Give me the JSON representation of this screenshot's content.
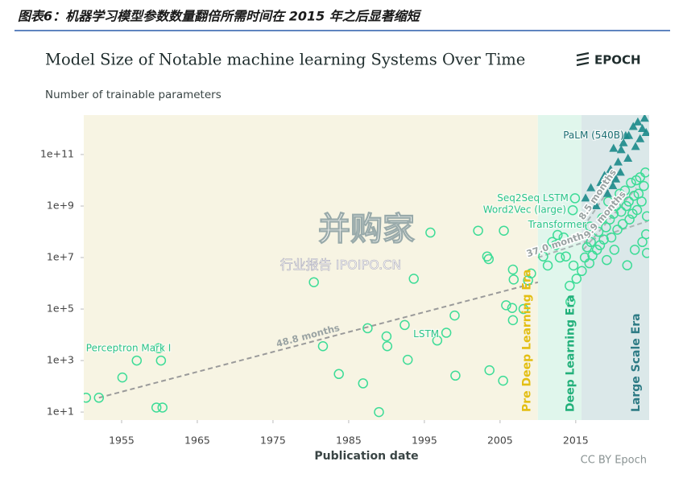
{
  "header": {
    "caption": "图表6：机器学习模型参数数量翻倍所需时间在 2015 年之后显著缩短"
  },
  "watermark": {
    "main": "并购家",
    "sub": "行业报告 IPOIPO.CN"
  },
  "chart_data": {
    "type": "scatter",
    "title": "Model Size of Notable machine learning Systems Over Time",
    "logo": "EPOCH",
    "y_label": "Number of trainable parameters",
    "x_label": "Publication date",
    "credit": "CC BY Epoch",
    "log_y": true,
    "xlim": [
      1950,
      2024.7
    ],
    "xticks": [
      1955,
      1965,
      1975,
      1985,
      1995,
      2005,
      2015
    ],
    "ylim": [
      4.9,
      3400000000000
    ],
    "yticks": [
      {
        "value": 10,
        "label": "1e+1"
      },
      {
        "value": 1000,
        "label": "1e+3"
      },
      {
        "value": 100000,
        "label": "1e+5"
      },
      {
        "value": 10000000,
        "label": "1e+7"
      },
      {
        "value": 1000000000,
        "label": "1e+9"
      },
      {
        "value": 100000000000,
        "label": "1e+11"
      }
    ],
    "eras": [
      {
        "name": "Pre Deep Learning Era",
        "start": 1950,
        "end": 2010,
        "color": "#f7f4e3",
        "label_color": "#e3be12"
      },
      {
        "name": "Deep Learning Era",
        "start": 2010,
        "end": 2015.75,
        "color": "#e0f6ec",
        "label_color": "#22b07a"
      },
      {
        "name": "Large Scale Era",
        "start": 2015.75,
        "end": 2024.7,
        "color": "#dbe8e9",
        "label_color": "#2e7b85"
      }
    ],
    "series": [
      {
        "marker": "circle",
        "color": "#3ddc97",
        "x": [
          1950.3,
          1952,
          1955.1,
          1957,
          1959.6,
          1960.4,
          1959.9,
          1960.2,
          1980.4,
          1981.6,
          1983.7,
          1986.9,
          1987.5,
          1989,
          1990,
          1990.1,
          1992.4,
          1992.8,
          1993.6,
          1995.8,
          1996.7,
          1997.9,
          1999,
          1999.1,
          2002.1,
          2003.3,
          2003.5,
          2003.6,
          2005.4,
          2005.5,
          2005.8,
          2006.7,
          2006.8,
          2006.6,
          2006.7,
          2008.1,
          2008.7,
          2009.1,
          2010.7,
          2011.3,
          2012.3,
          2012.6,
          2013.4,
          2013.7,
          2014.2,
          2014.3,
          2014.6,
          2014.9,
          2014.7,
          2015.1,
          2012.9,
          2011.9,
          2015.8,
          2016.2,
          2016.5,
          2016.8,
          2016.9,
          2017,
          2017.2,
          2017.8,
          2018,
          2018.2,
          2018.5,
          2018.7,
          2019,
          2019.1,
          2019.3,
          2019.5,
          2019.7,
          2020,
          2020.1,
          2020.3,
          2020.5,
          2020.8,
          2021,
          2021.2,
          2021.5,
          2021.7,
          2022,
          2022.1,
          2022.3,
          2022.5,
          2022.7,
          2023,
          2023.1,
          2023.3,
          2023.5,
          2023.7,
          2024,
          2024.2,
          2024.4,
          2024.4,
          2023.8,
          2022.8,
          2021.8,
          2024.3
        ],
        "values": [
          36,
          36,
          220,
          1000,
          15,
          15,
          3000,
          1000,
          1100000,
          3600,
          300,
          130,
          18000,
          10,
          8700,
          3600,
          24000,
          1070,
          1500000,
          93000000,
          6000,
          12000,
          56000,
          260,
          110000000,
          11000000,
          8700000,
          420,
          165,
          110000000,
          140000,
          3400000,
          1400000,
          110000,
          37000,
          100000,
          1300000,
          2400000,
          11000000,
          4900000,
          30000000,
          75000000,
          60000000,
          11000000,
          800000,
          190000,
          690000000,
          2000000000,
          4900000,
          1500000,
          10000000,
          40000000,
          3000000,
          10000000,
          25000000,
          6000000,
          160000000,
          40000000,
          12000000,
          20000000,
          100000000,
          30000000,
          340000000,
          50000000,
          150000000,
          8000000,
          1500000000,
          300000000,
          60000000,
          500000000,
          20000000,
          1000000000,
          120000000,
          3000000000,
          600000000,
          200000000,
          4000000000,
          1000000000,
          1500000000,
          300000000,
          8000000000,
          500000000,
          2500000000,
          10000000000,
          700000000,
          3000000000,
          13000000000,
          1500000000,
          6000000000,
          20000000000,
          400000000,
          15000000,
          40000000,
          20000000,
          5000000,
          80000000
        ]
      },
      {
        "marker": "triangle",
        "color": "#1b8a8a",
        "x": [
          2016.3,
          2017,
          2017.7,
          2018.3,
          2018.8,
          2019.2,
          2019.6,
          2020,
          2020.3,
          2020.6,
          2021,
          2021.3,
          2021.6,
          2021.9,
          2022,
          2022.6,
          2022.9,
          2023.2,
          2023.5,
          2023.8,
          2024.1,
          2024.3,
          2020.9,
          2019.9
        ],
        "values": [
          2000000000,
          5000000000,
          1000000000,
          8000000000,
          15000000000,
          3000000000,
          26000000000,
          170000000000,
          11000000000,
          50000000000,
          150000000000,
          280000000000,
          530000000000,
          70000000000,
          540000000000,
          1200000000000,
          200000000000,
          1800000000000,
          400000000000,
          1000000000000,
          2500000000000,
          700000000000,
          20000000000,
          6000000000
        ]
      }
    ],
    "annotations": [
      {
        "text": "Perceptron Mark I",
        "x": 1957,
        "y": 1000
      },
      {
        "text": "LSTM",
        "x": 1997.9,
        "y": 12000
      },
      {
        "text": "Word2Vec (large)",
        "x": 2014.6,
        "y": 690000000
      },
      {
        "text": "Seq2Seq LSTM",
        "x": 2014.9,
        "y": 2000000000
      },
      {
        "text": "Transformer",
        "x": 2016.9,
        "y": 160000000
      },
      {
        "text": "PaLM (540B)",
        "x": 2022,
        "y": 540000000000
      }
    ],
    "trends": [
      {
        "label": "48.8 months",
        "x": [
          1952,
          2010
        ],
        "values": [
          36,
          1100000
        ]
      },
      {
        "label": "37.0 months",
        "x": [
          2010,
          2024.5
        ],
        "values": [
          10000000,
          260000000
        ]
      },
      {
        "label": "8.5 months",
        "x": [
          2016,
          2021
        ],
        "values": [
          150000000,
          22000000000
        ]
      },
      {
        "label": "9.9 months",
        "x": [
          2016,
          2023
        ],
        "values": [
          20000000,
          5000000000
        ]
      }
    ]
  }
}
